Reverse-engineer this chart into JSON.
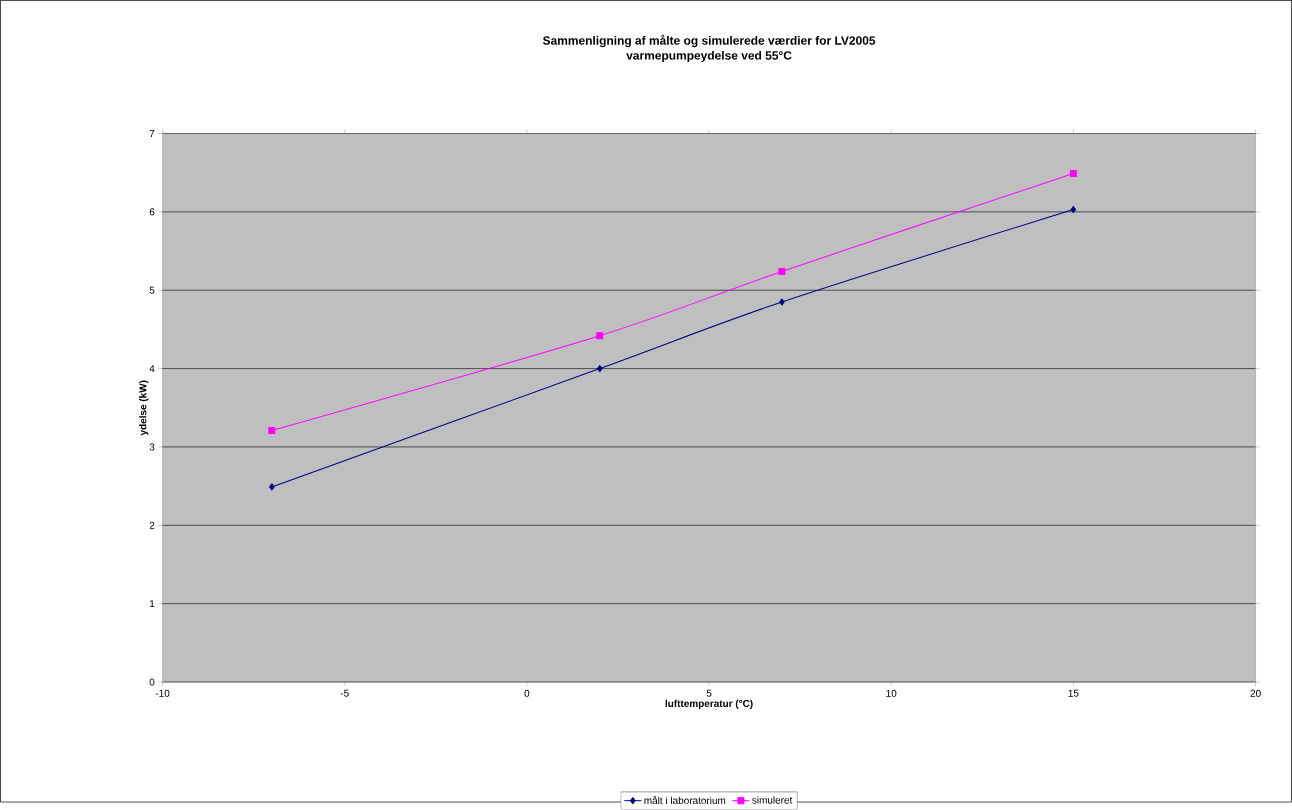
{
  "chart_data": {
    "type": "line",
    "title": "Sammenligning af målte og simulerede værdier for LV2005",
    "subtitle": "varmepumpeydelse ved 55°C",
    "xlabel": "lufttemperatur (°C)",
    "ylabel": "ydelse (kW)",
    "x": [
      -7,
      2,
      7,
      15
    ],
    "series": [
      {
        "name": "målt i laboratorium",
        "color": "#000080",
        "marker": "diamond",
        "values": [
          2.49,
          4.0,
          4.85,
          6.03
        ]
      },
      {
        "name": "simuleret",
        "color": "#ff00ff",
        "marker": "square",
        "values": [
          3.21,
          4.42,
          5.24,
          6.49
        ]
      }
    ],
    "xlim": [
      -10,
      20
    ],
    "xticks": [
      -10,
      -5,
      0,
      5,
      10,
      15,
      20
    ],
    "ylim": [
      0,
      7
    ],
    "yticks": [
      0,
      1,
      2,
      3,
      4,
      5,
      6,
      7
    ],
    "grid": "y",
    "legend": "bottom",
    "line_style": "solid"
  }
}
